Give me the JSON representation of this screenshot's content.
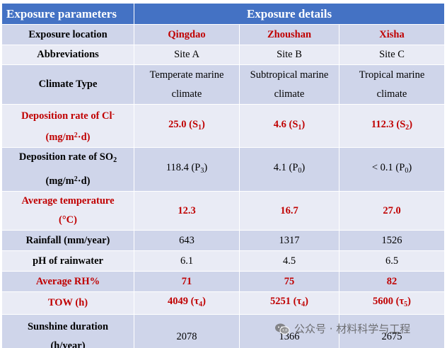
{
  "header": {
    "left": "Exposure parameters",
    "right": "Exposure details"
  },
  "colors": {
    "header_bg": "#4472c4",
    "row_dark": "#cfd5ea",
    "row_light": "#e9ebf5",
    "accent_red": "#c00000"
  },
  "rows": {
    "location": {
      "label": "Exposure location",
      "a": "Qingdao",
      "b": "Zhoushan",
      "c": "Xisha"
    },
    "abbrev": {
      "label": "Abbreviations",
      "a": "Site A",
      "b": "Site B",
      "c": "Site C"
    },
    "climate": {
      "label": "Climate Type",
      "a1": "Temperate marine",
      "a2": "climate",
      "b1": "Subtropical marine",
      "b2": "climate",
      "c1": "Tropical marine",
      "c2": "climate"
    },
    "cl": {
      "label_pre": "Deposition rate of Cl",
      "label_sup": "-",
      "unit_pre": "(mg/m",
      "unit_sup": "2",
      "unit_post": "·d)",
      "a_val": "25.0 (S",
      "a_sub": "1",
      "a_post": ")",
      "b_val": "4.6 (S",
      "b_sub": "1",
      "b_post": ")",
      "c_val": "112.3 (S",
      "c_sub": "2",
      "c_post": ")"
    },
    "so2": {
      "label_pre": "Deposition rate of SO",
      "label_sub": "2",
      "unit_pre": "(mg/m",
      "unit_sup": "2",
      "unit_post": "·d)",
      "a_val": "118.4 (P",
      "a_sub": "3",
      "a_post": ")",
      "b_val": "4.1 (P",
      "b_sub": "0",
      "b_post": ")",
      "c_val": "< 0.1 (P",
      "c_sub": "0",
      "c_post": ")"
    },
    "temp": {
      "label1": "Average temperature",
      "label2": "(°C)",
      "a": "12.3",
      "b": "16.7",
      "c": "27.0"
    },
    "rain": {
      "label": "Rainfall (mm/year)",
      "a": "643",
      "b": "1317",
      "c": "1526"
    },
    "ph": {
      "label": "pH of rainwater",
      "a": "6.1",
      "b": "4.5",
      "c": "6.5"
    },
    "rh": {
      "label": "Average RH%",
      "a": "71",
      "b": "75",
      "c": "82"
    },
    "tow": {
      "label": "TOW (h)",
      "a_val": "4049 (τ",
      "a_sub": "4",
      "a_post": ")",
      "b_val": "5251 (τ",
      "b_sub": "4",
      "b_post": ")",
      "c_val": "5600 (τ",
      "c_sub": "5",
      "c_post": ")"
    },
    "sun": {
      "label1": "Sunshine duration",
      "label2": "(h/year)",
      "a": "2078",
      "b": "1366",
      "c": "2675"
    }
  },
  "watermark": {
    "text": "公众号 · 材料科学与工程",
    "icon": "wechat-icon"
  }
}
